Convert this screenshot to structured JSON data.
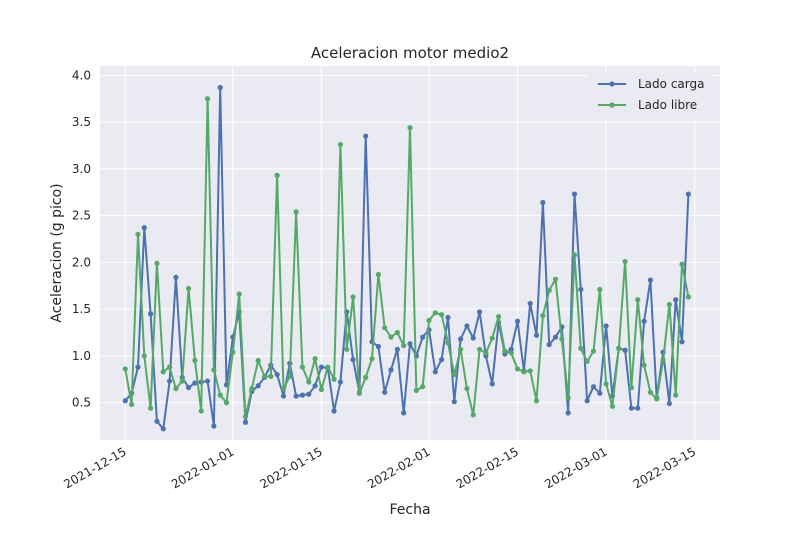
{
  "chart_data": {
    "type": "line",
    "title": "Aceleracion motor medio2",
    "xlabel": "Fecha",
    "ylabel": "Aceleracion (g pico)",
    "x_ticks": [
      "2021-12-15",
      "2022-01-01",
      "2022-01-15",
      "2022-02-01",
      "2022-02-15",
      "2022-03-01",
      "2022-03-15"
    ],
    "y_ticks": [
      "0.5",
      "1.0",
      "1.5",
      "2.0",
      "2.5",
      "3.0",
      "3.5",
      "4.0"
    ],
    "ylim": [
      0.1,
      4.1
    ],
    "xlim": [
      "2021-12-11",
      "2022-03-19"
    ],
    "grid": true,
    "legend_position": "top-right",
    "colors": {
      "Lado carga": "#4c72b0",
      "Lado libre": "#55a868",
      "background": "#eaeaf2",
      "grid": "#ffffff"
    },
    "series": [
      {
        "name": "Lado carga",
        "points": [
          [
            "2021-12-15",
            0.52
          ],
          [
            "2021-12-16",
            0.6
          ],
          [
            "2021-12-17",
            0.88
          ],
          [
            "2021-12-18",
            2.37
          ],
          [
            "2021-12-19",
            1.45
          ],
          [
            "2021-12-20",
            0.3
          ],
          [
            "2021-12-21",
            0.22
          ],
          [
            "2021-12-22",
            0.73
          ],
          [
            "2021-12-23",
            1.84
          ],
          [
            "2021-12-24",
            0.77
          ],
          [
            "2021-12-25",
            0.66
          ],
          [
            "2021-12-26",
            0.71
          ],
          [
            "2021-12-27",
            0.72
          ],
          [
            "2021-12-28",
            0.73
          ],
          [
            "2021-12-29",
            0.25
          ],
          [
            "2021-12-30",
            3.87
          ],
          [
            "2021-12-31",
            0.69
          ],
          [
            "2022-01-01",
            1.2
          ],
          [
            "2022-01-02",
            1.47
          ],
          [
            "2022-01-03",
            0.29
          ],
          [
            "2022-01-04",
            0.62
          ],
          [
            "2022-01-05",
            0.68
          ],
          [
            "2022-01-06",
            0.77
          ],
          [
            "2022-01-07",
            0.9
          ],
          [
            "2022-01-08",
            0.8
          ],
          [
            "2022-01-09",
            0.57
          ],
          [
            "2022-01-10",
            0.92
          ],
          [
            "2022-01-11",
            0.57
          ],
          [
            "2022-01-12",
            0.58
          ],
          [
            "2022-01-13",
            0.59
          ],
          [
            "2022-01-14",
            0.68
          ],
          [
            "2022-01-15",
            0.88
          ],
          [
            "2022-01-16",
            0.87
          ],
          [
            "2022-01-17",
            0.41
          ],
          [
            "2022-01-18",
            0.72
          ],
          [
            "2022-01-19",
            1.47
          ],
          [
            "2022-01-20",
            0.96
          ],
          [
            "2022-01-21",
            0.61
          ],
          [
            "2022-01-22",
            3.35
          ],
          [
            "2022-01-23",
            1.15
          ],
          [
            "2022-01-24",
            1.1
          ],
          [
            "2022-01-25",
            0.61
          ],
          [
            "2022-01-26",
            0.85
          ],
          [
            "2022-01-27",
            1.07
          ],
          [
            "2022-01-28",
            0.39
          ],
          [
            "2022-01-29",
            1.13
          ],
          [
            "2022-01-30",
            1.0
          ],
          [
            "2022-01-31",
            1.2
          ],
          [
            "2022-02-01",
            1.28
          ],
          [
            "2022-02-02",
            0.83
          ],
          [
            "2022-02-03",
            0.96
          ],
          [
            "2022-02-04",
            1.41
          ],
          [
            "2022-02-05",
            0.51
          ],
          [
            "2022-02-06",
            1.18
          ],
          [
            "2022-02-07",
            1.32
          ],
          [
            "2022-02-08",
            1.19
          ],
          [
            "2022-02-09",
            1.47
          ],
          [
            "2022-02-10",
            1.0
          ],
          [
            "2022-02-11",
            0.7
          ],
          [
            "2022-02-12",
            1.36
          ],
          [
            "2022-02-13",
            1.02
          ],
          [
            "2022-02-14",
            1.07
          ],
          [
            "2022-02-15",
            1.37
          ],
          [
            "2022-02-16",
            0.84
          ],
          [
            "2022-02-17",
            1.56
          ],
          [
            "2022-02-18",
            1.22
          ],
          [
            "2022-02-19",
            2.64
          ],
          [
            "2022-02-20",
            1.12
          ],
          [
            "2022-02-21",
            1.2
          ],
          [
            "2022-02-22",
            1.31
          ],
          [
            "2022-02-23",
            0.39
          ],
          [
            "2022-02-24",
            2.73
          ],
          [
            "2022-02-25",
            1.71
          ],
          [
            "2022-02-26",
            0.52
          ],
          [
            "2022-02-27",
            0.67
          ],
          [
            "2022-02-28",
            0.6
          ],
          [
            "2022-03-01",
            1.32
          ],
          [
            "2022-03-02",
            0.57
          ],
          [
            "2022-03-03",
            1.08
          ],
          [
            "2022-03-04",
            1.06
          ],
          [
            "2022-03-05",
            0.44
          ],
          [
            "2022-03-06",
            0.44
          ],
          [
            "2022-03-07",
            1.37
          ],
          [
            "2022-03-08",
            1.81
          ],
          [
            "2022-03-09",
            0.55
          ],
          [
            "2022-03-10",
            1.04
          ],
          [
            "2022-03-11",
            0.49
          ],
          [
            "2022-03-12",
            1.6
          ],
          [
            "2022-03-13",
            1.15
          ],
          [
            "2022-03-14",
            2.73
          ]
        ]
      },
      {
        "name": "Lado libre",
        "points": [
          [
            "2021-12-15",
            0.86
          ],
          [
            "2021-12-16",
            0.48
          ],
          [
            "2021-12-17",
            2.3
          ],
          [
            "2021-12-18",
            1.0
          ],
          [
            "2021-12-19",
            0.44
          ],
          [
            "2021-12-20",
            1.99
          ],
          [
            "2021-12-21",
            0.83
          ],
          [
            "2021-12-22",
            0.88
          ],
          [
            "2021-12-23",
            0.65
          ],
          [
            "2021-12-24",
            0.73
          ],
          [
            "2021-12-25",
            1.72
          ],
          [
            "2021-12-26",
            0.95
          ],
          [
            "2021-12-27",
            0.41
          ],
          [
            "2021-12-28",
            3.75
          ],
          [
            "2021-12-29",
            0.85
          ],
          [
            "2021-12-30",
            0.58
          ],
          [
            "2021-12-31",
            0.5
          ],
          [
            "2022-01-01",
            1.04
          ],
          [
            "2022-01-02",
            1.66
          ],
          [
            "2022-01-03",
            0.35
          ],
          [
            "2022-01-04",
            0.65
          ],
          [
            "2022-01-05",
            0.95
          ],
          [
            "2022-01-06",
            0.78
          ],
          [
            "2022-01-07",
            0.78
          ],
          [
            "2022-01-08",
            2.93
          ],
          [
            "2022-01-09",
            0.65
          ],
          [
            "2022-01-10",
            0.78
          ],
          [
            "2022-01-11",
            2.54
          ],
          [
            "2022-01-12",
            0.88
          ],
          [
            "2022-01-13",
            0.72
          ],
          [
            "2022-01-14",
            0.97
          ],
          [
            "2022-01-15",
            0.64
          ],
          [
            "2022-01-16",
            0.88
          ],
          [
            "2022-01-17",
            0.75
          ],
          [
            "2022-01-18",
            3.26
          ],
          [
            "2022-01-19",
            1.07
          ],
          [
            "2022-01-20",
            1.63
          ],
          [
            "2022-01-21",
            0.6
          ],
          [
            "2022-01-22",
            0.77
          ],
          [
            "2022-01-23",
            0.97
          ],
          [
            "2022-01-24",
            1.87
          ],
          [
            "2022-01-25",
            1.3
          ],
          [
            "2022-01-26",
            1.2
          ],
          [
            "2022-01-27",
            1.25
          ],
          [
            "2022-01-28",
            1.11
          ],
          [
            "2022-01-29",
            3.44
          ],
          [
            "2022-01-30",
            0.63
          ],
          [
            "2022-01-31",
            0.67
          ],
          [
            "2022-02-01",
            1.38
          ],
          [
            "2022-02-02",
            1.46
          ],
          [
            "2022-02-03",
            1.44
          ],
          [
            "2022-02-04",
            1.14
          ],
          [
            "2022-02-05",
            0.8
          ],
          [
            "2022-02-06",
            1.07
          ],
          [
            "2022-02-07",
            0.65
          ],
          [
            "2022-02-08",
            0.37
          ],
          [
            "2022-02-09",
            1.07
          ],
          [
            "2022-02-10",
            1.03
          ],
          [
            "2022-02-11",
            1.19
          ],
          [
            "2022-02-12",
            1.42
          ],
          [
            "2022-02-13",
            1.05
          ],
          [
            "2022-02-14",
            1.03
          ],
          [
            "2022-02-15",
            0.86
          ],
          [
            "2022-02-16",
            0.83
          ],
          [
            "2022-02-17",
            0.84
          ],
          [
            "2022-02-18",
            0.52
          ],
          [
            "2022-02-19",
            1.43
          ],
          [
            "2022-02-20",
            1.7
          ],
          [
            "2022-02-21",
            1.82
          ],
          [
            "2022-02-22",
            1.18
          ],
          [
            "2022-02-23",
            0.55
          ],
          [
            "2022-02-24",
            2.08
          ],
          [
            "2022-02-25",
            1.08
          ],
          [
            "2022-02-26",
            0.94
          ],
          [
            "2022-02-27",
            1.05
          ],
          [
            "2022-02-28",
            1.71
          ],
          [
            "2022-03-01",
            0.7
          ],
          [
            "2022-03-02",
            0.46
          ],
          [
            "2022-03-03",
            1.08
          ],
          [
            "2022-03-04",
            2.01
          ],
          [
            "2022-03-05",
            0.66
          ],
          [
            "2022-03-06",
            1.6
          ],
          [
            "2022-03-07",
            0.9
          ],
          [
            "2022-03-08",
            0.61
          ],
          [
            "2022-03-09",
            0.54
          ],
          [
            "2022-03-10",
            0.95
          ],
          [
            "2022-03-11",
            1.55
          ],
          [
            "2022-03-12",
            0.58
          ],
          [
            "2022-03-13",
            1.98
          ],
          [
            "2022-03-14",
            1.63
          ]
        ]
      }
    ]
  }
}
